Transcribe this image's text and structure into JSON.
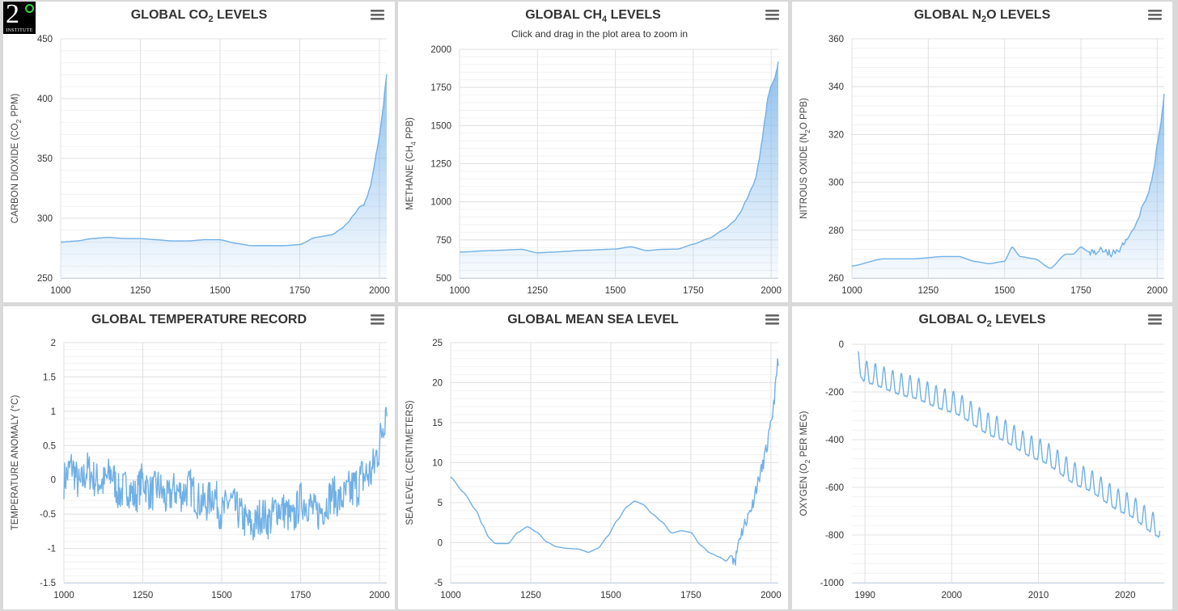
{
  "logo": {
    "numeral": "2",
    "text": "INSTITUTE",
    "alt": "2 degrees institute logo"
  },
  "colors": {
    "series": "#70b0e6",
    "area_top": "#7cb5ec",
    "background": "#ffffff",
    "frame": "#d9d9d9"
  },
  "chart_data": [
    {
      "id": "co2",
      "type": "area",
      "title_parts": [
        "GLOBAL CO",
        "2",
        " LEVELS"
      ],
      "ylabel_parts": [
        "CARBON DIOXIDE (CO",
        "2",
        " PPM)"
      ],
      "subtitle": "",
      "xlim": [
        1000,
        2023
      ],
      "ylim": [
        250,
        450
      ],
      "xticks": [
        1000,
        1250,
        1500,
        1750,
        2000
      ],
      "yticks": [
        250,
        300,
        350,
        400,
        450
      ],
      "ytick_labels": [
        "250",
        "300",
        "350",
        "400",
        "450"
      ],
      "x": [
        1000,
        1050,
        1100,
        1150,
        1200,
        1250,
        1300,
        1350,
        1400,
        1450,
        1500,
        1550,
        1600,
        1650,
        1700,
        1750,
        1800,
        1850,
        1880,
        1900,
        1920,
        1940,
        1950,
        1960,
        1970,
        1980,
        1990,
        2000,
        2010,
        2020,
        2023
      ],
      "values": [
        280,
        281,
        283,
        284,
        283,
        283,
        282,
        281,
        281,
        282,
        282,
        279,
        277,
        277,
        277,
        278,
        284,
        286,
        291,
        296,
        303,
        310,
        311,
        317,
        325,
        338,
        354,
        369,
        389,
        414,
        421
      ]
    },
    {
      "id": "ch4",
      "type": "area",
      "title_parts": [
        "GLOBAL CH",
        "4",
        " LEVELS"
      ],
      "ylabel_parts": [
        "METHANE (CH",
        "4",
        " PPB)"
      ],
      "subtitle": "Click and drag in the plot area to zoom in",
      "xlim": [
        1000,
        2023
      ],
      "ylim": [
        500,
        2000
      ],
      "xticks": [
        1000,
        1250,
        1500,
        1750,
        2000
      ],
      "yticks": [
        500,
        750,
        1000,
        1250,
        1500,
        1750,
        2000
      ],
      "ytick_labels": [
        "500",
        "750",
        "1000",
        "1250",
        "1500",
        "1750",
        "2000"
      ],
      "x": [
        1000,
        1100,
        1200,
        1250,
        1300,
        1400,
        1500,
        1550,
        1600,
        1650,
        1700,
        1750,
        1800,
        1850,
        1880,
        1900,
        1920,
        1940,
        1950,
        1960,
        1970,
        1980,
        1990,
        2000,
        2010,
        2020,
        2023
      ],
      "values": [
        670,
        680,
        688,
        665,
        670,
        682,
        690,
        705,
        680,
        688,
        690,
        722,
        760,
        820,
        870,
        925,
        1010,
        1100,
        1150,
        1260,
        1390,
        1540,
        1690,
        1760,
        1800,
        1880,
        1920
      ]
    },
    {
      "id": "n2o",
      "type": "area",
      "title_parts": [
        "GLOBAL N",
        "2",
        "O LEVELS"
      ],
      "ylabel_parts": [
        "NITROUS OXIDE (N",
        "2",
        "O PPB)"
      ],
      "subtitle": "",
      "xlim": [
        1000,
        2023
      ],
      "ylim": [
        260,
        360
      ],
      "xticks": [
        1000,
        1250,
        1500,
        1750,
        2000
      ],
      "yticks": [
        260,
        280,
        300,
        320,
        340,
        360
      ],
      "ytick_labels": [
        "260",
        "280",
        "300",
        "320",
        "340",
        "360"
      ],
      "x": [
        1000,
        1100,
        1200,
        1300,
        1350,
        1400,
        1450,
        1500,
        1525,
        1550,
        1600,
        1650,
        1700,
        1725,
        1750,
        1775,
        1800,
        1825,
        1850,
        1875,
        1900,
        1920,
        1940,
        1950,
        1960,
        1970,
        1980,
        1990,
        2000,
        2010,
        2020,
        2023
      ],
      "values": [
        265,
        268,
        268,
        269,
        269,
        267,
        266,
        267,
        273,
        269,
        268,
        264,
        270,
        270,
        273,
        271,
        271,
        272,
        270,
        272,
        276,
        280,
        285,
        290,
        292,
        295,
        300,
        306,
        316,
        323,
        333,
        337
      ]
    },
    {
      "id": "temperature",
      "type": "line",
      "title_parts": [
        "GLOBAL TEMPERATURE RECORD"
      ],
      "ylabel_parts": [
        "TEMPERATURE ANOMALY (°C)"
      ],
      "subtitle": "",
      "xlim": [
        1000,
        2023
      ],
      "ylim": [
        -1.5,
        2
      ],
      "xticks": [
        1000,
        1250,
        1500,
        1750,
        2000
      ],
      "yticks": [
        -1.5,
        -1,
        -0.5,
        0,
        0.5,
        1,
        1.5,
        2
      ],
      "ytick_labels": [
        "-1.5",
        "-1",
        "-0.5",
        "0",
        "0.5",
        "1",
        "1.5",
        "2"
      ],
      "x": [
        1000,
        1025,
        1050,
        1075,
        1100,
        1125,
        1150,
        1175,
        1200,
        1225,
        1250,
        1275,
        1300,
        1325,
        1350,
        1375,
        1400,
        1425,
        1450,
        1475,
        1500,
        1525,
        1550,
        1575,
        1600,
        1625,
        1650,
        1675,
        1700,
        1725,
        1750,
        1775,
        1800,
        1825,
        1850,
        1875,
        1900,
        1925,
        1950,
        1975,
        2000,
        2015,
        2023
      ],
      "values": [
        0.0,
        0.2,
        -0.1,
        0.15,
        0.0,
        -0.05,
        0.1,
        -0.2,
        -0.1,
        -0.25,
        0.0,
        -0.2,
        -0.1,
        -0.3,
        -0.15,
        -0.2,
        -0.1,
        -0.3,
        -0.35,
        -0.2,
        -0.5,
        -0.3,
        -0.45,
        -0.6,
        -0.7,
        -0.5,
        -0.6,
        -0.4,
        -0.45,
        -0.6,
        -0.3,
        -0.35,
        -0.5,
        -0.4,
        -0.2,
        -0.3,
        -0.2,
        -0.1,
        0.05,
        0.1,
        0.5,
        0.9,
        1.2
      ],
      "noise": 0.28,
      "samples": 520
    },
    {
      "id": "sea",
      "type": "line",
      "title_parts": [
        "GLOBAL MEAN SEA LEVEL"
      ],
      "ylabel_parts": [
        "SEA LEVEL (CENTIMETERS)"
      ],
      "subtitle": "",
      "xlim": [
        1000,
        2023
      ],
      "ylim": [
        -5,
        25
      ],
      "xticks": [
        1000,
        1250,
        1500,
        1750,
        2000
      ],
      "yticks": [
        -5,
        0,
        5,
        10,
        15,
        20,
        25
      ],
      "ytick_labels": [
        "-5",
        "0",
        "5",
        "10",
        "15",
        "20",
        "25"
      ],
      "x": [
        1000,
        1040,
        1080,
        1100,
        1120,
        1140,
        1160,
        1180,
        1210,
        1240,
        1270,
        1300,
        1330,
        1360,
        1400,
        1430,
        1460,
        1490,
        1520,
        1550,
        1575,
        1600,
        1630,
        1660,
        1690,
        1720,
        1750,
        1780,
        1810,
        1840,
        1860,
        1875,
        1890,
        1900,
        1910,
        1925,
        1940,
        1955,
        1970,
        1985,
        2000,
        2010,
        2023
      ],
      "values": [
        8.2,
        6.3,
        4.0,
        2.2,
        0.6,
        -0.1,
        -0.1,
        -0.1,
        1.3,
        2.0,
        1.3,
        0.1,
        -0.5,
        -0.7,
        -0.8,
        -1.2,
        -0.7,
        0.8,
        2.8,
        4.5,
        5.2,
        4.8,
        3.6,
        2.6,
        1.2,
        1.5,
        1.3,
        -0.3,
        -1.3,
        -1.8,
        -2.3,
        -1.6,
        -2.0,
        0.5,
        1.5,
        3.0,
        4.5,
        7.0,
        9.0,
        11.5,
        14.5,
        18.0,
        23.0
      ],
      "noise": 0.9,
      "noise_from": 1880
    },
    {
      "id": "o2",
      "type": "line",
      "title_parts": [
        "GLOBAL O",
        "2",
        " LEVELS"
      ],
      "ylabel_parts": [
        "OXYGEN (O",
        "2",
        " PER MEG)"
      ],
      "subtitle": "",
      "xlim": [
        1988.5,
        2024.5
      ],
      "ylim": [
        -1000,
        0
      ],
      "xticks": [
        1990,
        2000,
        2010,
        2020
      ],
      "yticks": [
        -1000,
        -800,
        -600,
        -400,
        -200,
        0
      ],
      "ytick_labels": [
        "-1000",
        "-800",
        "-600",
        "-400",
        "-200",
        "0"
      ],
      "x": [
        1989.2,
        1990,
        1995,
        2000,
        2005,
        2010,
        2015,
        2020,
        2024
      ],
      "values": [
        -90,
        -130,
        -190,
        -255,
        -360,
        -455,
        -570,
        -680,
        -780
      ],
      "seasonal_amplitude": 55,
      "samples_per_year": 24
    }
  ]
}
